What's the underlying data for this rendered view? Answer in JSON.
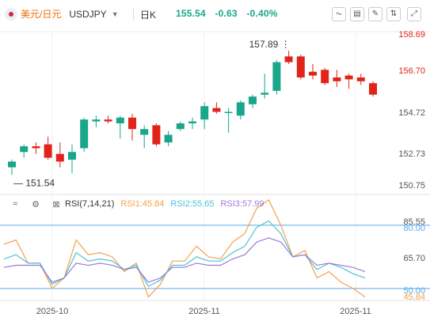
{
  "header": {
    "pair_cn": "美元/日元",
    "pair_code": "USDJPY",
    "period": "日K",
    "price": "155.54",
    "change": "-0.63",
    "change_pct": "-0.40%",
    "icons": [
      "line-chart-icon",
      "indicator-icon",
      "draw-icon",
      "compare-icon",
      "fullscreen-icon"
    ]
  },
  "colors": {
    "up": "#19a68a",
    "down": "#e2231a",
    "rsi1": "#f5a04a",
    "rsi2": "#4bc4d6",
    "rsi3": "#9a7ad6",
    "level": "#5aa9ee"
  },
  "price_axis": {
    "labels": [
      "158.69",
      "156.70",
      "154.72",
      "152.73",
      "150.75"
    ],
    "high_label": "157.89",
    "low_label": "151.54"
  },
  "rsi": {
    "name": "RSI(7,14,21)",
    "v1": "RSI1:45.84",
    "v2": "RSI2:55.65",
    "v3": "RSI3:57.99",
    "axis_labels": [
      "85.55",
      "80.00",
      "65.70",
      "50.00",
      "45.84"
    ]
  },
  "dates": [
    "2025-10",
    "2025-11",
    "2025-11"
  ],
  "chart_data": {
    "type": "candlestick",
    "price_range": [
      150.75,
      158.69
    ],
    "rsi_range": [
      45.84,
      85.55
    ],
    "rsi_levels": [
      80,
      50
    ],
    "candles": [
      {
        "o": 151.8,
        "h": 152.2,
        "l": 151.4,
        "c": 152.1
      },
      {
        "o": 152.6,
        "h": 153.0,
        "l": 152.3,
        "c": 152.9
      },
      {
        "o": 152.9,
        "h": 153.1,
        "l": 152.5,
        "c": 152.8
      },
      {
        "o": 153.0,
        "h": 153.4,
        "l": 152.2,
        "c": 152.3
      },
      {
        "o": 152.5,
        "h": 153.1,
        "l": 151.8,
        "c": 152.1
      },
      {
        "o": 152.2,
        "h": 153.0,
        "l": 151.5,
        "c": 152.6
      },
      {
        "o": 152.8,
        "h": 154.4,
        "l": 152.6,
        "c": 154.3
      },
      {
        "o": 154.2,
        "h": 154.5,
        "l": 153.9,
        "c": 154.3
      },
      {
        "o": 154.3,
        "h": 154.5,
        "l": 154.1,
        "c": 154.2
      },
      {
        "o": 154.1,
        "h": 154.5,
        "l": 153.3,
        "c": 154.4
      },
      {
        "o": 154.4,
        "h": 154.6,
        "l": 153.2,
        "c": 153.8
      },
      {
        "o": 153.5,
        "h": 154.0,
        "l": 152.8,
        "c": 153.8
      },
      {
        "o": 154.0,
        "h": 154.1,
        "l": 152.9,
        "c": 153.0
      },
      {
        "o": 153.1,
        "h": 153.7,
        "l": 152.9,
        "c": 153.5
      },
      {
        "o": 153.8,
        "h": 154.2,
        "l": 153.7,
        "c": 154.1
      },
      {
        "o": 154.1,
        "h": 154.4,
        "l": 153.8,
        "c": 154.2
      },
      {
        "o": 154.3,
        "h": 155.2,
        "l": 153.8,
        "c": 155.0
      },
      {
        "o": 154.9,
        "h": 155.2,
        "l": 154.6,
        "c": 154.7
      },
      {
        "o": 154.7,
        "h": 154.9,
        "l": 153.6,
        "c": 154.7
      },
      {
        "o": 154.5,
        "h": 155.3,
        "l": 154.3,
        "c": 155.2
      },
      {
        "o": 155.1,
        "h": 155.6,
        "l": 154.9,
        "c": 155.5
      },
      {
        "o": 155.6,
        "h": 156.7,
        "l": 155.4,
        "c": 155.7
      },
      {
        "o": 155.8,
        "h": 157.4,
        "l": 155.6,
        "c": 157.3
      },
      {
        "o": 157.6,
        "h": 157.9,
        "l": 157.2,
        "c": 157.3
      },
      {
        "o": 157.6,
        "h": 157.7,
        "l": 156.4,
        "c": 156.5
      },
      {
        "o": 156.8,
        "h": 157.2,
        "l": 156.4,
        "c": 156.6
      },
      {
        "o": 156.9,
        "h": 157.0,
        "l": 156.1,
        "c": 156.2
      },
      {
        "o": 156.5,
        "h": 156.9,
        "l": 156.0,
        "c": 156.3
      },
      {
        "o": 156.6,
        "h": 156.7,
        "l": 155.9,
        "c": 156.4
      },
      {
        "o": 156.5,
        "h": 156.7,
        "l": 156.1,
        "c": 156.3
      },
      {
        "o": 156.2,
        "h": 156.3,
        "l": 155.5,
        "c": 155.6
      }
    ],
    "rsi1": [
      71,
      73,
      62,
      62,
      50,
      55,
      73,
      66,
      67,
      65,
      58,
      62,
      46,
      52,
      63,
      63,
      70,
      65,
      64,
      72,
      76,
      88,
      92,
      80,
      65,
      68,
      55,
      58,
      53,
      50,
      46
    ],
    "rsi2": [
      64,
      66,
      62,
      62,
      52,
      55,
      67,
      63,
      64,
      63,
      59,
      61,
      51,
      54,
      61,
      61,
      65,
      63,
      63,
      67,
      70,
      79,
      82,
      76,
      65,
      66,
      59,
      62,
      60,
      57,
      55
    ],
    "rsi3": [
      60,
      61,
      61,
      61,
      53,
      55,
      62,
      61,
      62,
      61,
      59,
      60,
      53,
      55,
      60,
      60,
      62,
      61,
      61,
      64,
      66,
      72,
      74,
      72,
      65,
      66,
      61,
      62,
      61,
      60,
      58
    ]
  }
}
